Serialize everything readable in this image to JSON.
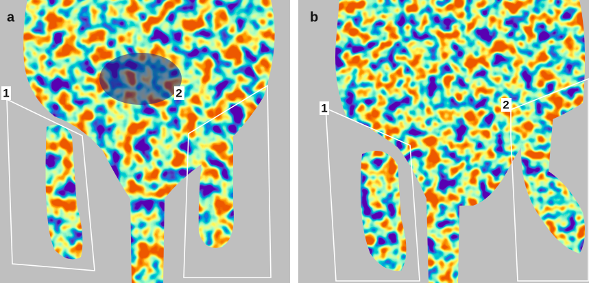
{
  "panels": [
    {
      "label": "a",
      "regions": [
        "1",
        "2"
      ]
    },
    {
      "label": "b",
      "regions": [
        "1",
        "2"
      ]
    }
  ]
}
